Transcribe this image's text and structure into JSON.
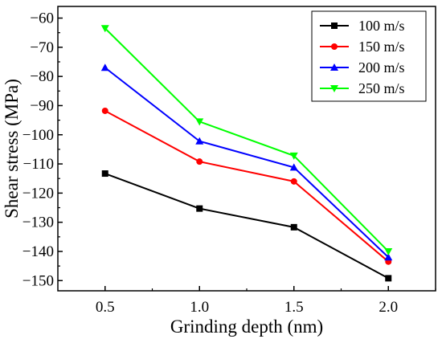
{
  "chart_data": {
    "type": "line",
    "title": "",
    "xlabel": "Grinding depth (nm)",
    "ylabel": "Shear stress (MPa)",
    "x": [
      0.5,
      1.0,
      1.5,
      2.0
    ],
    "x_tick_labels": [
      "0.5",
      "1.0",
      "1.5",
      "2.0"
    ],
    "xlim": [
      0.25,
      2.25
    ],
    "ylim": [
      -153.5,
      -56
    ],
    "y_ticks": [
      -60,
      -70,
      -80,
      -90,
      -100,
      -110,
      -120,
      -130,
      -140,
      -150
    ],
    "y_tick_labels": [
      "−60",
      "−70",
      "−80",
      "−90",
      "−100",
      "−110",
      "−120",
      "−130",
      "−140",
      "−150"
    ],
    "grid": false,
    "legend_position": "top-right",
    "series": [
      {
        "name": "100 m/s",
        "color": "#000000",
        "marker": "square",
        "values": [
          -113.3,
          -125.3,
          -131.7,
          -149.2
        ]
      },
      {
        "name": "150 m/s",
        "color": "#ff0000",
        "marker": "circle",
        "values": [
          -91.8,
          -109.2,
          -116.0,
          -143.5
        ]
      },
      {
        "name": "200 m/s",
        "color": "#0000ff",
        "marker": "triangle-up",
        "values": [
          -77.0,
          -102.2,
          -111.2,
          -142.0
        ]
      },
      {
        "name": "250 m/s",
        "color": "#00ff00",
        "marker": "triangle-down",
        "values": [
          -63.5,
          -95.5,
          -107.2,
          -140.0
        ]
      }
    ]
  }
}
